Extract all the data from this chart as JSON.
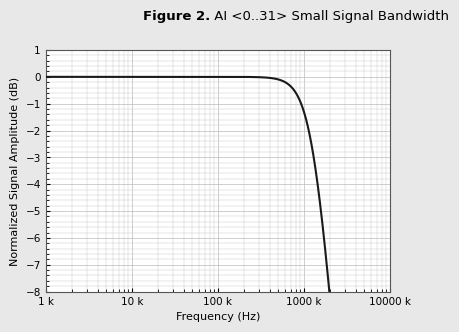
{
  "title_bold": "Figure 2.",
  "title_regular": " AI <0..31> Small Signal Bandwidth",
  "xlabel": "Frequency (Hz)",
  "ylabel": "Normalized Signal Amplitude (dB)",
  "xmin": 1000,
  "xmax": 10000000,
  "ymin": -8,
  "ymax": 1,
  "yticks": [
    1,
    0,
    -1,
    -2,
    -3,
    -4,
    -5,
    -6,
    -7,
    -8
  ],
  "xtick_positions": [
    1000,
    10000,
    100000,
    1000000,
    10000000
  ],
  "xtick_labels": [
    "1 k",
    "10 k",
    "100 k",
    "1000 k",
    "10000 k"
  ],
  "fc_hz": 1900000,
  "filter_order": 1,
  "line_color": "#1a1a1a",
  "line_width": 1.5,
  "major_grid_color": "#bbbbbb",
  "minor_grid_color": "#cccccc",
  "grid_linewidth": 0.5,
  "bg_color": "#ffffff",
  "fig_bg_color": "#e8e8e8",
  "title_fontsize": 9.5,
  "axis_label_fontsize": 8,
  "tick_fontsize": 7.5
}
